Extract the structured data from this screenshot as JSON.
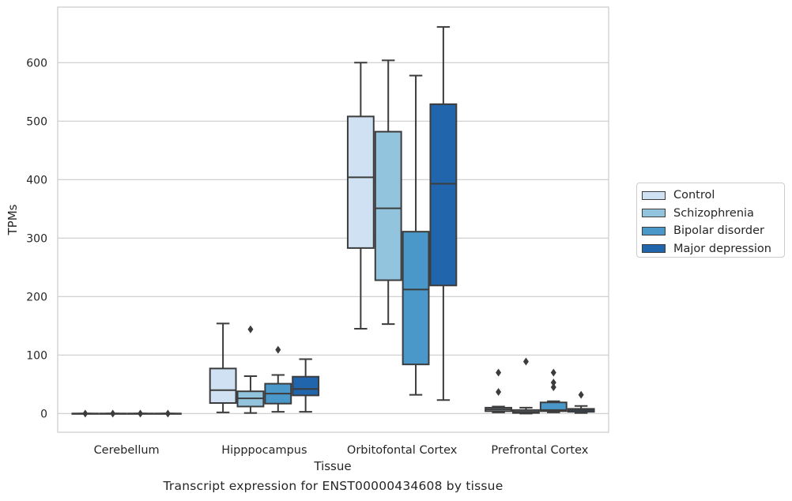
{
  "caption": "Transcript expression for ENST00000434608 by tissue",
  "chart_data": {
    "type": "box",
    "title": "",
    "xlabel": "Tissue",
    "ylabel": "TPMs",
    "ylim": [
      -32,
      695
    ],
    "yticks": [
      0,
      100,
      200,
      300,
      400,
      500,
      600
    ],
    "grid": "horizontal",
    "legend_position": "right",
    "categories": [
      "Cerebellum",
      "Hipppocampus",
      "Orbitofontal Cortex",
      "Prefrontal Cortex"
    ],
    "series": [
      {
        "name": "Control",
        "color": "#cfe1f2",
        "boxes": [
          {
            "q1": 0,
            "median": 0,
            "q3": 0,
            "whisker_low": 0,
            "whisker_high": 0,
            "outliers": [
              0
            ]
          },
          {
            "q1": 18,
            "median": 40,
            "q3": 77,
            "whisker_low": 2,
            "whisker_high": 154,
            "outliers": []
          },
          {
            "q1": 283,
            "median": 404,
            "q3": 508,
            "whisker_low": 145,
            "whisker_high": 600,
            "outliers": []
          },
          {
            "q1": 4,
            "median": 7,
            "q3": 10,
            "whisker_low": 2,
            "whisker_high": 12,
            "outliers": [
              37,
              70
            ]
          }
        ]
      },
      {
        "name": "Schizophrenia",
        "color": "#93c4de",
        "boxes": [
          {
            "q1": 0,
            "median": 0,
            "q3": 0,
            "whisker_low": 0,
            "whisker_high": 0,
            "outliers": [
              0
            ]
          },
          {
            "q1": 12,
            "median": 26,
            "q3": 38,
            "whisker_low": 1,
            "whisker_high": 64,
            "outliers": [
              144
            ]
          },
          {
            "q1": 228,
            "median": 351,
            "q3": 482,
            "whisker_low": 153,
            "whisker_high": 604,
            "outliers": []
          },
          {
            "q1": 1,
            "median": 3,
            "q3": 6,
            "whisker_low": 0,
            "whisker_high": 10,
            "outliers": [
              89
            ]
          }
        ]
      },
      {
        "name": "Bipolar disorder",
        "color": "#4a98c9",
        "boxes": [
          {
            "q1": 0,
            "median": 0,
            "q3": 0,
            "whisker_low": 0,
            "whisker_high": 0,
            "outliers": [
              0
            ]
          },
          {
            "q1": 17,
            "median": 34,
            "q3": 51,
            "whisker_low": 3,
            "whisker_high": 66,
            "outliers": [
              109
            ]
          },
          {
            "q1": 84,
            "median": 212,
            "q3": 311,
            "whisker_low": 32,
            "whisker_high": 578,
            "outliers": []
          },
          {
            "q1": 4,
            "median": 6,
            "q3": 19,
            "whisker_low": 2,
            "whisker_high": 21,
            "outliers": [
              45,
              53,
              70
            ]
          }
        ]
      },
      {
        "name": "Major depression",
        "color": "#2166ac",
        "boxes": [
          {
            "q1": 0,
            "median": 0,
            "q3": 0,
            "whisker_low": 0,
            "whisker_high": 0,
            "outliers": [
              0
            ]
          },
          {
            "q1": 31,
            "median": 42,
            "q3": 63,
            "whisker_low": 3,
            "whisker_high": 93,
            "outliers": []
          },
          {
            "q1": 219,
            "median": 393,
            "q3": 529,
            "whisker_low": 23,
            "whisker_high": 661,
            "outliers": []
          },
          {
            "q1": 3,
            "median": 6,
            "q3": 8,
            "whisker_low": 1,
            "whisker_high": 13,
            "outliers": [
              32
            ]
          }
        ]
      }
    ]
  }
}
